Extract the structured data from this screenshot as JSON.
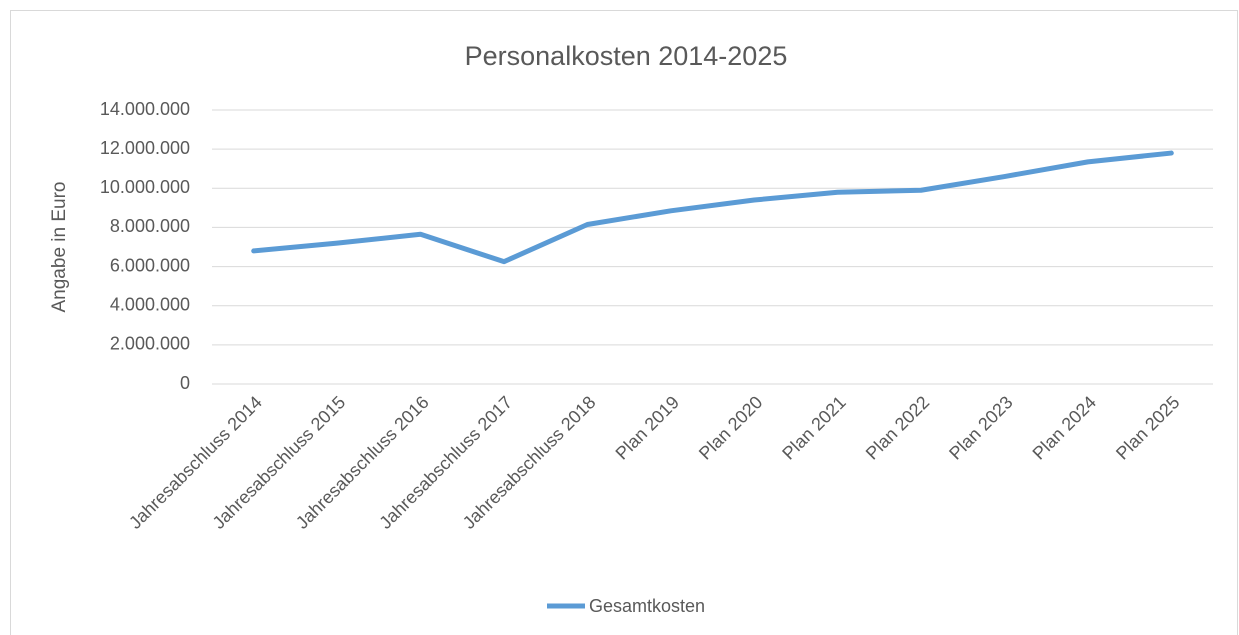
{
  "chart_data": {
    "type": "line",
    "title": "Personalkosten 2014-2025",
    "y_label": "Angabe in Euro",
    "categories": [
      "Jahresabschluss 2014",
      "Jahresabschluss 2015",
      "Jahresabschluss 2016",
      "Jahresabschluss 2017",
      "Jahresabschluss 2018",
      "Plan 2019",
      "Plan 2020",
      "Plan 2021",
      "Plan 2022",
      "Plan 2023",
      "Plan 2024",
      "Plan 2025"
    ],
    "series": [
      {
        "name": "Gesamtkosten",
        "color": "#5b9bd5",
        "values": [
          6800000,
          7200000,
          7650000,
          6250000,
          8150000,
          8850000,
          9400000,
          9800000,
          9900000,
          10600000,
          11350000,
          11800000
        ]
      }
    ],
    "ylim": [
      0,
      14000000
    ],
    "yticks": [
      0,
      {
        "value": 2000000,
        "label": "2.000.000"
      },
      {
        "value": 4000000,
        "label": "4.000.000"
      },
      {
        "value": 6000000,
        "label": "6.000.000"
      },
      {
        "value": 8000000,
        "label": "8.000.000"
      },
      {
        "value": 10000000,
        "label": "10.000.000"
      },
      {
        "value": 12000000,
        "label": "12.000.000"
      },
      {
        "value": 14000000,
        "label": "14.000.000"
      }
    ],
    "grid": true,
    "legend": "bottom"
  }
}
